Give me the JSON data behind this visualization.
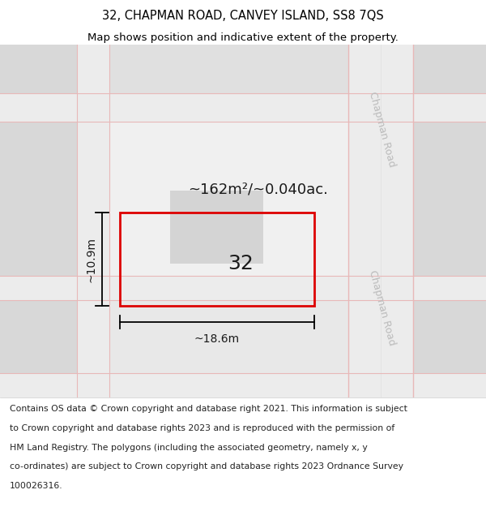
{
  "title_line1": "32, CHAPMAN ROAD, CANVEY ISLAND, SS8 7QS",
  "title_line2": "Map shows position and indicative extent of the property.",
  "footer_lines": [
    "Contains OS data © Crown copyright and database right 2021. This information is subject",
    "to Crown copyright and database rights 2023 and is reproduced with the permission of",
    "HM Land Registry. The polygons (including the associated geometry, namely x, y",
    "co-ordinates) are subject to Crown copyright and database rights 2023 Ordnance Survey",
    "100026316."
  ],
  "map_bg": "#f7f7f7",
  "block_gray": "#d8d8d8",
  "block_mid": "#e2e2e2",
  "road_bg": "#ececec",
  "grid_pink": "#e8b8b8",
  "property_color": "#dd0000",
  "building_fill": "#d0d0d0",
  "property_label": "32",
  "area_label": "~162m²/~0.040ac.",
  "width_label": "~18.6m",
  "height_label": "~10.9m",
  "chapman_road_label": "Chapman Road",
  "title_fontsize": 10.5,
  "subtitle_fontsize": 9.5,
  "footer_fontsize": 7.8,
  "prop_label_fontsize": 18,
  "area_fontsize": 13,
  "dim_fontsize": 10,
  "road_label_fontsize": 9
}
